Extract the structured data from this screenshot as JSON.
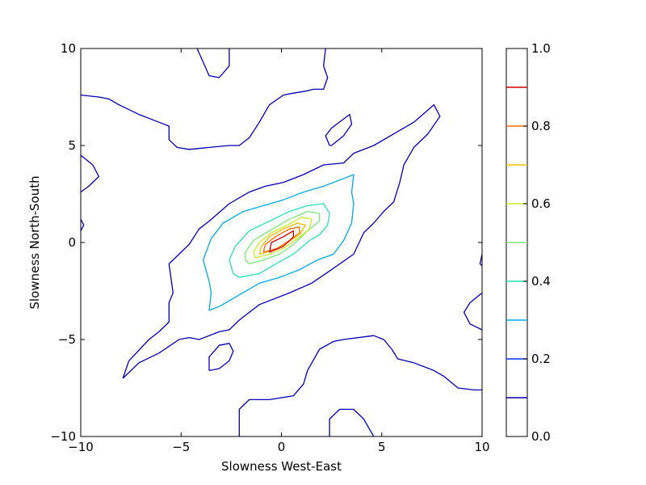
{
  "chart_data": {
    "type": "contour",
    "title": "",
    "xlabel": "Slowness West-East",
    "ylabel": "Slowness North-South",
    "xlim": [
      -10,
      10
    ],
    "ylim": [
      -10,
      10
    ],
    "x_ticks": [
      -10,
      -5,
      0,
      5,
      10
    ],
    "y_ticks": [
      -10,
      -5,
      0,
      5,
      10
    ],
    "x_tick_labels": [
      "−10",
      "−5",
      "0",
      "5",
      "10"
    ],
    "y_tick_labels": [
      "−10",
      "−5",
      "0",
      "5",
      "10"
    ],
    "grid": false,
    "colormap": "jet",
    "colorbar": {
      "range": [
        0,
        1
      ],
      "ticks": [
        0.0,
        0.2,
        0.4,
        0.6,
        0.8,
        1.0
      ],
      "tick_labels": [
        "0.0",
        "0.2",
        "0.4",
        "0.6",
        "0.8",
        "1.0"
      ],
      "levels": [
        {
          "value": 0.1,
          "color": "#0000b3"
        },
        {
          "value": 0.2,
          "color": "#0033ff"
        },
        {
          "value": 0.3,
          "color": "#00a8e8"
        },
        {
          "value": 0.4,
          "color": "#26e0b8"
        },
        {
          "value": 0.5,
          "color": "#7ae87a"
        },
        {
          "value": 0.6,
          "color": "#c8ec2a"
        },
        {
          "value": 0.7,
          "color": "#f0c000"
        },
        {
          "value": 0.8,
          "color": "#ff6a00"
        },
        {
          "value": 0.9,
          "color": "#d00000"
        }
      ]
    },
    "contours": [
      {
        "level": 0.1,
        "points": [
          [
            -4.2,
            10
          ],
          [
            -3.6,
            8.6
          ],
          [
            -3.1,
            8.5
          ],
          [
            -2.6,
            9.1
          ],
          [
            -2.6,
            10
          ]
        ]
      },
      {
        "level": 0.1,
        "points": [
          [
            -10,
            7.6
          ],
          [
            -9.1,
            7.5
          ],
          [
            -8.6,
            7.4
          ],
          [
            -8.1,
            7.1
          ],
          [
            -7.1,
            6.6
          ],
          [
            -6.1,
            6.2
          ],
          [
            -5.6,
            6.0
          ],
          [
            -5.6,
            5.3
          ],
          [
            -5.2,
            4.9
          ],
          [
            -4.6,
            4.8
          ],
          [
            -3.6,
            4.9
          ],
          [
            -2.6,
            5.0
          ],
          [
            -2.1,
            5.0
          ],
          [
            -1.6,
            5.4
          ],
          [
            -1.1,
            6.2
          ],
          [
            -0.6,
            7.1
          ],
          [
            0.1,
            7.6
          ],
          [
            0.6,
            7.7
          ],
          [
            1.2,
            7.8
          ],
          [
            1.6,
            7.9
          ],
          [
            2.1,
            7.9
          ],
          [
            2.3,
            8.5
          ],
          [
            2.1,
            9.1
          ],
          [
            2.2,
            10
          ]
        ]
      },
      {
        "level": 0.1,
        "points": [
          [
            -10,
            4.5
          ],
          [
            -9.4,
            4.0
          ],
          [
            -9.1,
            3.4
          ],
          [
            -9.6,
            2.9
          ],
          [
            -10,
            2.6
          ]
        ]
      },
      {
        "level": 0.1,
        "points": [
          [
            -10,
            1.2
          ],
          [
            -9.85,
            0.9
          ],
          [
            -10,
            0.6
          ]
        ]
      },
      {
        "level": 0.1,
        "points": [
          [
            2.4,
            5.0
          ],
          [
            2.2,
            5.5
          ],
          [
            2.5,
            5.9
          ],
          [
            3.4,
            6.6
          ],
          [
            3.5,
            6.1
          ],
          [
            3.1,
            5.5
          ],
          [
            2.5,
            5.0
          ],
          [
            2.4,
            5.0
          ]
        ]
      },
      {
        "level": 0.1,
        "points": [
          [
            -7.9,
            -7.0
          ],
          [
            -7.1,
            -6.2
          ],
          [
            -6.1,
            -5.7
          ],
          [
            -5.1,
            -5.0
          ],
          [
            -4.6,
            -4.9
          ],
          [
            -4.1,
            -5.0
          ],
          [
            -3.1,
            -4.6
          ],
          [
            -2.6,
            -4.5
          ],
          [
            -2.1,
            -4.0
          ],
          [
            -1.1,
            -3.2
          ],
          [
            0.4,
            -2.6
          ],
          [
            1.5,
            -2.1
          ],
          [
            2.5,
            -1.4
          ],
          [
            3.6,
            -0.6
          ],
          [
            4.1,
            0.5
          ],
          [
            4.6,
            1.0
          ],
          [
            5.1,
            1.6
          ],
          [
            5.6,
            2.1
          ],
          [
            5.9,
            3.1
          ],
          [
            6.1,
            4.0
          ],
          [
            6.6,
            4.9
          ],
          [
            7.3,
            5.6
          ],
          [
            7.9,
            6.5
          ],
          [
            7.6,
            7.1
          ],
          [
            6.6,
            6.2
          ],
          [
            5.6,
            5.6
          ],
          [
            4.6,
            5.0
          ],
          [
            3.6,
            4.6
          ],
          [
            3.1,
            4.1
          ],
          [
            2.1,
            4.0
          ],
          [
            1.1,
            3.5
          ],
          [
            0.1,
            3.1
          ],
          [
            -0.8,
            2.9
          ],
          [
            -1.6,
            2.6
          ],
          [
            -2.6,
            2.0
          ],
          [
            -3.6,
            1.1
          ],
          [
            -4.1,
            0.7
          ],
          [
            -4.6,
            -0.1
          ],
          [
            -5.1,
            -0.6
          ],
          [
            -5.6,
            -1.1
          ],
          [
            -5.4,
            -2.6
          ],
          [
            -5.6,
            -3.1
          ],
          [
            -5.6,
            -4.1
          ],
          [
            -6.1,
            -4.6
          ],
          [
            -6.6,
            -5.0
          ],
          [
            -7.6,
            -6.1
          ],
          [
            -7.9,
            -7.0
          ]
        ]
      },
      {
        "level": 0.1,
        "points": [
          [
            -3.6,
            -6.6
          ],
          [
            -3.6,
            -5.9
          ],
          [
            -3.1,
            -5.3
          ],
          [
            -2.6,
            -5.2
          ],
          [
            -2.4,
            -5.6
          ],
          [
            -2.6,
            -6.1
          ],
          [
            -3.1,
            -6.5
          ],
          [
            -3.6,
            -6.6
          ]
        ]
      },
      {
        "level": 0.1,
        "points": [
          [
            -2.1,
            -10
          ],
          [
            -2.1,
            -8.6
          ],
          [
            -1.6,
            -8.1
          ],
          [
            -0.6,
            -8.1
          ],
          [
            0.6,
            -7.9
          ],
          [
            1.1,
            -7.3
          ],
          [
            1.3,
            -6.6
          ],
          [
            1.9,
            -5.5
          ],
          [
            2.6,
            -5.1
          ],
          [
            3.1,
            -5.0
          ],
          [
            4.6,
            -4.8
          ],
          [
            5.1,
            -5.0
          ],
          [
            5.5,
            -5.5
          ],
          [
            5.8,
            -6.0
          ],
          [
            6.6,
            -6.2
          ],
          [
            7.6,
            -6.6
          ],
          [
            8.1,
            -6.9
          ],
          [
            8.8,
            -7.5
          ],
          [
            9.6,
            -7.6
          ],
          [
            10,
            -7.6
          ]
        ]
      },
      {
        "level": 0.1,
        "points": [
          [
            10,
            -2.6
          ],
          [
            9.4,
            -3.1
          ],
          [
            9.1,
            -3.6
          ],
          [
            9.4,
            -4.2
          ],
          [
            10,
            -4.5
          ]
        ]
      },
      {
        "level": 0.1,
        "points": [
          [
            10,
            -0.6
          ],
          [
            9.9,
            -1.1
          ],
          [
            10,
            -1.2
          ]
        ]
      },
      {
        "level": 0.1,
        "points": [
          [
            2.4,
            -10
          ],
          [
            2.4,
            -9.1
          ],
          [
            2.9,
            -8.6
          ],
          [
            3.6,
            -8.6
          ],
          [
            4.1,
            -9.1
          ],
          [
            4.6,
            -10
          ]
        ]
      },
      {
        "level": 0.3,
        "points": [
          [
            -3.6,
            -3.5
          ],
          [
            -3.1,
            -3.3
          ],
          [
            -2.1,
            -2.7
          ],
          [
            -1.1,
            -2.1
          ],
          [
            -0.1,
            -1.8
          ],
          [
            0.9,
            -1.4
          ],
          [
            1.8,
            -0.9
          ],
          [
            2.6,
            -0.6
          ],
          [
            3.1,
            0.1
          ],
          [
            3.5,
            1.0
          ],
          [
            3.6,
            2.0
          ],
          [
            3.5,
            2.6
          ],
          [
            3.6,
            3.5
          ],
          [
            3.1,
            3.3
          ],
          [
            2.1,
            2.9
          ],
          [
            1.1,
            2.6
          ],
          [
            0.1,
            2.2
          ],
          [
            -0.9,
            1.9
          ],
          [
            -1.9,
            1.6
          ],
          [
            -2.9,
            1.0
          ],
          [
            -3.5,
            0.2
          ],
          [
            -3.9,
            -0.9
          ],
          [
            -3.6,
            -2.0
          ],
          [
            -3.5,
            -2.6
          ],
          [
            -3.6,
            -3.5
          ]
        ]
      },
      {
        "level": 0.4,
        "points": [
          [
            -2.1,
            -1.8
          ],
          [
            -1.1,
            -1.6
          ],
          [
            -0.1,
            -1.0
          ],
          [
            0.6,
            -0.6
          ],
          [
            1.4,
            0.1
          ],
          [
            1.9,
            0.4
          ],
          [
            2.3,
            0.9
          ],
          [
            2.4,
            1.5
          ],
          [
            2.1,
            2.0
          ],
          [
            1.3,
            1.9
          ],
          [
            0.4,
            1.6
          ],
          [
            -0.6,
            1.1
          ],
          [
            -1.6,
            0.6
          ],
          [
            -2.3,
            -0.2
          ],
          [
            -2.6,
            -0.9
          ],
          [
            -2.4,
            -1.6
          ],
          [
            -2.1,
            -1.8
          ]
        ]
      },
      {
        "level": 0.5,
        "points": [
          [
            -1.6,
            -1.1
          ],
          [
            -0.9,
            -0.9
          ],
          [
            -0.1,
            -0.6
          ],
          [
            0.6,
            -0.1
          ],
          [
            1.3,
            0.6
          ],
          [
            1.9,
            1.1
          ],
          [
            1.9,
            1.5
          ],
          [
            1.3,
            1.6
          ],
          [
            0.4,
            1.2
          ],
          [
            -0.6,
            0.6
          ],
          [
            -1.4,
            0.1
          ],
          [
            -1.8,
            -0.5
          ],
          [
            -1.8,
            -0.9
          ],
          [
            -1.6,
            -1.1
          ]
        ]
      },
      {
        "level": 0.6,
        "points": [
          [
            -1.3,
            -0.8
          ],
          [
            -0.6,
            -0.6
          ],
          [
            0.1,
            -0.3
          ],
          [
            0.8,
            0.2
          ],
          [
            1.4,
            0.7
          ],
          [
            1.5,
            1.2
          ],
          [
            1.0,
            1.3
          ],
          [
            0.3,
            0.9
          ],
          [
            -0.5,
            0.5
          ],
          [
            -1.1,
            0.0
          ],
          [
            -1.4,
            -0.5
          ],
          [
            -1.3,
            -0.8
          ]
        ]
      },
      {
        "level": 0.7,
        "points": [
          [
            -1.1,
            -0.6
          ],
          [
            -0.4,
            -0.4
          ],
          [
            0.3,
            0.0
          ],
          [
            0.9,
            0.4
          ],
          [
            1.2,
            0.9
          ],
          [
            0.8,
            1.0
          ],
          [
            0.1,
            0.7
          ],
          [
            -0.6,
            0.3
          ],
          [
            -1.0,
            -0.2
          ],
          [
            -1.1,
            -0.6
          ]
        ]
      },
      {
        "level": 0.8,
        "points": [
          [
            -0.9,
            -0.5
          ],
          [
            -0.2,
            -0.3
          ],
          [
            0.4,
            0.1
          ],
          [
            0.9,
            0.5
          ],
          [
            0.9,
            0.8
          ],
          [
            0.4,
            0.7
          ],
          [
            -0.3,
            0.3
          ],
          [
            -0.8,
            -0.1
          ],
          [
            -0.9,
            -0.5
          ]
        ]
      },
      {
        "level": 0.9,
        "points": [
          [
            -0.6,
            -0.5
          ],
          [
            0.1,
            -0.2
          ],
          [
            0.6,
            0.3
          ],
          [
            0.6,
            0.6
          ],
          [
            0.1,
            0.3
          ],
          [
            -0.5,
            0.0
          ],
          [
            -0.6,
            -0.5
          ]
        ]
      }
    ]
  }
}
